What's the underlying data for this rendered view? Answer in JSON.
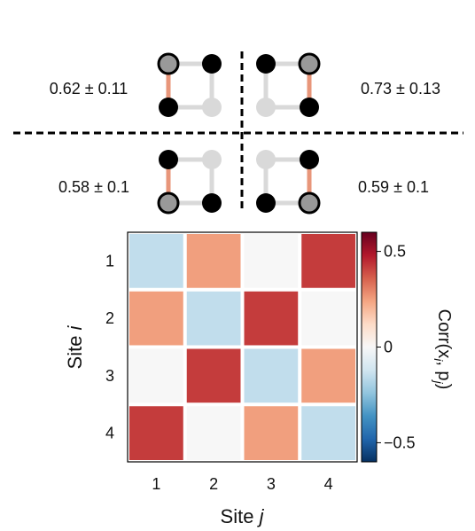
{
  "plaquettes": [
    {
      "value_text": "0.62 ± 0.11",
      "dark_sites": [
        "tl",
        "tr",
        "bl"
      ],
      "light_sites": [
        "br"
      ],
      "gray_sites": [
        "tl"
      ],
      "orange_bond": "left"
    },
    {
      "value_text": "0.73 ± 0.13",
      "dark_sites": [
        "tl",
        "tr",
        "br"
      ],
      "light_sites": [
        "bl"
      ],
      "gray_sites": [
        "tr"
      ],
      "orange_bond": "right"
    },
    {
      "value_text": "0.58 ± 0.1",
      "dark_sites": [
        "tl",
        "bl",
        "br"
      ],
      "light_sites": [
        "tr"
      ],
      "gray_sites": [
        "bl"
      ],
      "orange_bond": "left"
    },
    {
      "value_text": "0.59 ± 0.1",
      "dark_sites": [
        "tr",
        "bl",
        "br"
      ],
      "light_sites": [
        "tl"
      ],
      "gray_sites": [
        "br"
      ],
      "orange_bond": "right"
    }
  ],
  "colors": {
    "dark_site": "#000000",
    "light_site": "#d9d9d9",
    "gray_site": "#999999",
    "orange_bond": "#e8967a",
    "gray_bond": "#d9d9d9",
    "positive_max": "#67001f",
    "negative_max": "#053061"
  },
  "chart_data": {
    "type": "heatmap",
    "x_categories": [
      "1",
      "2",
      "3",
      "4"
    ],
    "y_categories": [
      "1",
      "2",
      "3",
      "4"
    ],
    "values": [
      [
        -0.15,
        0.25,
        0.0,
        0.42
      ],
      [
        0.25,
        -0.15,
        0.42,
        0.0
      ],
      [
        0.0,
        0.42,
        -0.15,
        0.25
      ],
      [
        0.42,
        0.0,
        0.25,
        -0.15
      ]
    ],
    "xlabel_prefix": "Site ",
    "xlabel_var": "j",
    "ylabel_prefix": "Site ",
    "ylabel_var": "i",
    "colorbar_label": "Corr(x_i, p_j)",
    "colorbar_range": [
      -0.6,
      0.6
    ],
    "colorbar_ticks": [
      0.5,
      0,
      -0.5
    ],
    "colorbar_tick_labels": [
      "0.5",
      "0",
      "−0.5"
    ],
    "colormap": "RdBu_r"
  }
}
